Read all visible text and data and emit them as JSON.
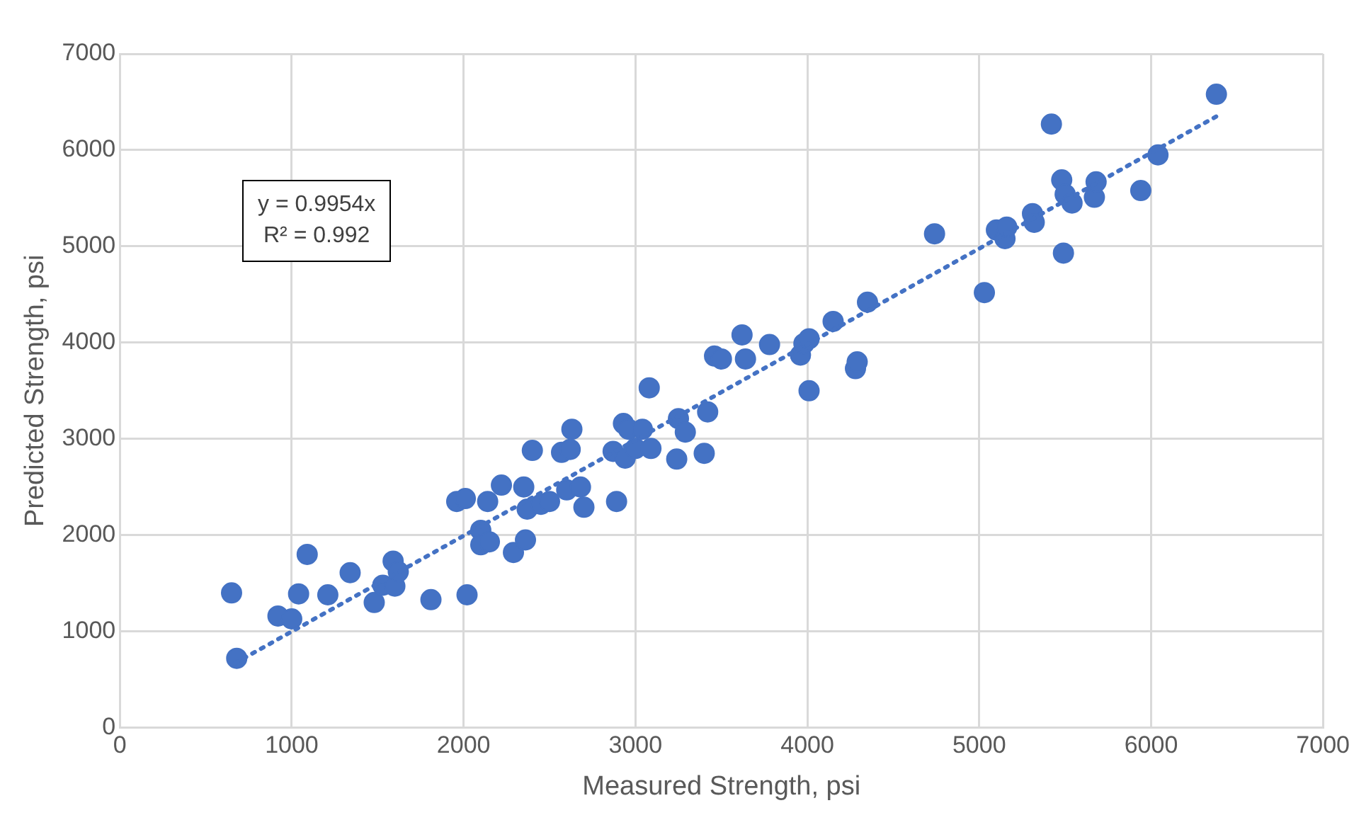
{
  "chart_data": {
    "type": "scatter",
    "xlabel": "Measured Strength, psi",
    "ylabel": "Predicted Strength, psi",
    "annotations": [
      "y = 0.9954x",
      "R² = 0.992"
    ],
    "xlim": [
      0,
      7000
    ],
    "xticks": [
      0,
      1000,
      2000,
      3000,
      4000,
      5000,
      6000,
      7000
    ],
    "ylim": [
      0,
      7000
    ],
    "yticks": [
      0,
      1000,
      2000,
      3000,
      4000,
      5000,
      6000,
      7000
    ],
    "grid": true,
    "legend": false,
    "marker": "circle",
    "series": [
      {
        "color": "#4472c4",
        "x": [
          650,
          680,
          920,
          1000,
          1040,
          1090,
          1210,
          1340,
          1480,
          1530,
          1590,
          1600,
          1620,
          1810,
          1960,
          2010,
          2020,
          2100,
          2100,
          2140,
          2150,
          2220,
          2290,
          2350,
          2360,
          2370,
          2400,
          2450,
          2500,
          2570,
          2600,
          2620,
          2630,
          2680,
          2700,
          2870,
          2890,
          2930,
          2940,
          2960,
          3000,
          3040,
          3080,
          3090,
          3240,
          3250,
          3290,
          3400,
          3420,
          3460,
          3500,
          3620,
          3640,
          3780,
          3960,
          3980,
          4010,
          4010,
          4150,
          4280,
          4290,
          4350,
          4740,
          5030,
          5100,
          5150,
          5160,
          5310,
          5320,
          5420,
          5480,
          5490,
          5500,
          5540,
          5670,
          5680,
          5940,
          6040,
          6380
        ],
        "values": [
          1400,
          720,
          1160,
          1130,
          1390,
          1800,
          1380,
          1610,
          1300,
          1480,
          1730,
          1470,
          1620,
          1330,
          2350,
          2380,
          1380,
          2050,
          1900,
          2350,
          1930,
          2520,
          1820,
          2500,
          1950,
          2270,
          2880,
          2320,
          2350,
          2860,
          2470,
          2890,
          3100,
          2500,
          2290,
          2870,
          2350,
          3160,
          2800,
          3100,
          2900,
          3100,
          3530,
          2900,
          2790,
          3210,
          3070,
          2850,
          3280,
          3860,
          3830,
          4080,
          3830,
          3980,
          3870,
          3990,
          4040,
          3500,
          4220,
          3730,
          3800,
          4420,
          5130,
          4520,
          5170,
          5080,
          5200,
          5340,
          5250,
          6270,
          5690,
          4930,
          5540,
          5450,
          5510,
          5670,
          5580,
          5950,
          6580
        ]
      },
      {
        "color": "#4472c4",
        "type": "line",
        "line_style": "dotted",
        "marker": "none",
        "x": [
          670,
          6380
        ],
        "values": [
          670,
          6350
        ]
      }
    ]
  }
}
